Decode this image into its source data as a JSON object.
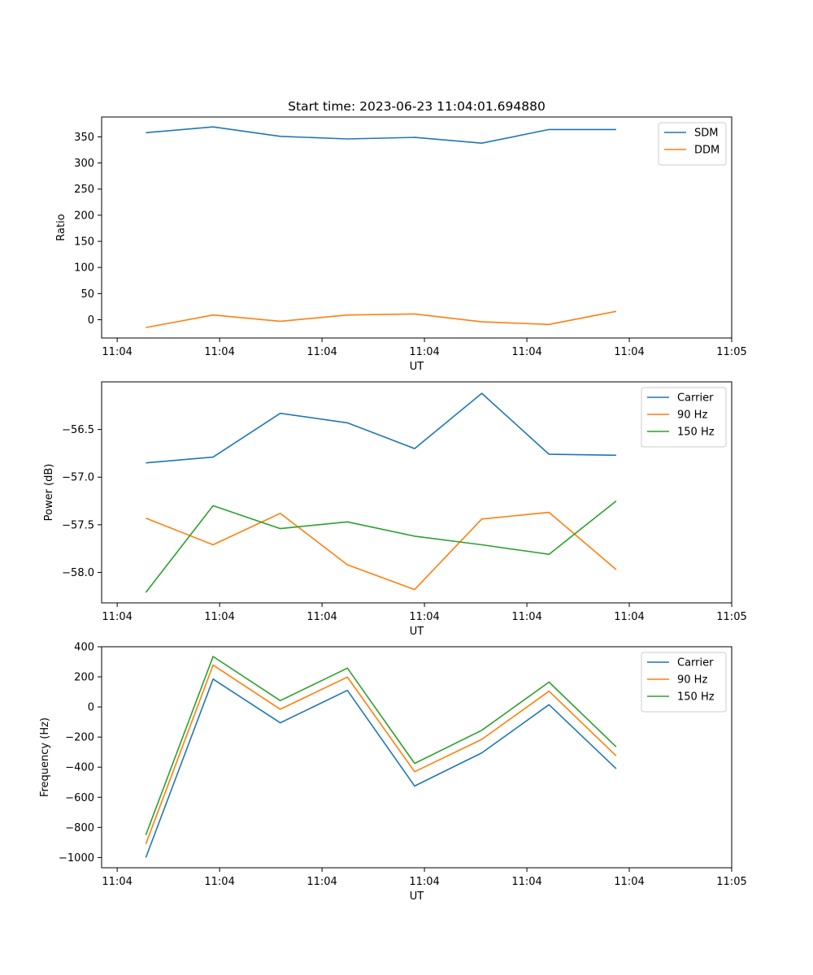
{
  "chart_data": [
    {
      "type": "line",
      "title": "Start time: 2023-06-23 11:04:01.694880",
      "xlabel": "UT",
      "ylabel": "Ratio",
      "x": [
        0.35,
        1.17,
        1.99,
        2.81,
        3.63,
        4.45,
        5.27,
        6.09
      ],
      "xlim": [
        -0.19,
        7.5
      ],
      "x_ticks": [
        0,
        1.25,
        2.5,
        3.75,
        5,
        6.25,
        7.5
      ],
      "x_tick_labels": [
        "11:04",
        "11:04",
        "11:04",
        "11:04",
        "11:04",
        "11:04",
        "11:05"
      ],
      "ylim": [
        -35,
        388
      ],
      "y_ticks": [
        0,
        50,
        100,
        150,
        200,
        250,
        300,
        350
      ],
      "y_tick_labels": [
        "0",
        "50",
        "100",
        "150",
        "200",
        "250",
        "300",
        "350"
      ],
      "legend": "top-right",
      "grid": false,
      "series": [
        {
          "name": "SDM",
          "color": "#1f77b4",
          "values": [
            358,
            369,
            351,
            346,
            349,
            338,
            364,
            364
          ]
        },
        {
          "name": "DDM",
          "color": "#ff7f0e",
          "values": [
            -15,
            9,
            -3,
            9,
            11,
            -4,
            -9,
            16
          ]
        }
      ]
    },
    {
      "type": "line",
      "title": "",
      "xlabel": "UT",
      "ylabel": "Power (dB)",
      "x": [
        0.35,
        1.17,
        1.99,
        2.81,
        3.63,
        4.45,
        5.27,
        6.09
      ],
      "xlim": [
        -0.19,
        7.5
      ],
      "x_ticks": [
        0,
        1.25,
        2.5,
        3.75,
        5,
        6.25,
        7.5
      ],
      "x_tick_labels": [
        "11:04",
        "11:04",
        "11:04",
        "11:04",
        "11:04",
        "11:04",
        "11:05"
      ],
      "ylim": [
        -58.32,
        -56.0
      ],
      "y_ticks": [
        -58.0,
        -57.5,
        -57.0,
        -56.5
      ],
      "y_tick_labels": [
        "−58.0",
        "−57.5",
        "−57.0",
        "−56.5"
      ],
      "legend": "top-right",
      "grid": false,
      "series": [
        {
          "name": "Carrier",
          "color": "#1f77b4",
          "values": [
            -56.85,
            -56.79,
            -56.33,
            -56.43,
            -56.7,
            -56.12,
            -56.76,
            -56.77
          ]
        },
        {
          "name": "90 Hz",
          "color": "#ff7f0e",
          "values": [
            -57.43,
            -57.71,
            -57.38,
            -57.92,
            -58.18,
            -57.44,
            -57.37,
            -57.97
          ]
        },
        {
          "name": "150 Hz",
          "color": "#2ca02c",
          "values": [
            -58.21,
            -57.3,
            -57.54,
            -57.47,
            -57.62,
            -57.71,
            -57.81,
            -57.25
          ]
        }
      ]
    },
    {
      "type": "line",
      "title": "",
      "xlabel": "UT",
      "ylabel": "Frequency (Hz)",
      "x": [
        0.35,
        1.17,
        1.99,
        2.81,
        3.63,
        4.45,
        5.27,
        6.09
      ],
      "xlim": [
        -0.19,
        7.5
      ],
      "x_ticks": [
        0,
        1.25,
        2.5,
        3.75,
        5,
        6.25,
        7.5
      ],
      "x_tick_labels": [
        "11:04",
        "11:04",
        "11:04",
        "11:04",
        "11:04",
        "11:04",
        "11:05"
      ],
      "ylim": [
        -1068,
        400
      ],
      "y_ticks": [
        -1000,
        -800,
        -600,
        -400,
        -200,
        0,
        200,
        400
      ],
      "y_tick_labels": [
        "−1000",
        "−800",
        "−600",
        "−400",
        "−200",
        "0",
        "200",
        "400"
      ],
      "legend": "top-right",
      "grid": false,
      "series": [
        {
          "name": "Carrier",
          "color": "#1f77b4",
          "values": [
            -1000,
            185,
            -105,
            110,
            -525,
            -305,
            15,
            -410
          ]
        },
        {
          "name": "90 Hz",
          "color": "#ff7f0e",
          "values": [
            -910,
            278,
            -15,
            198,
            -430,
            -215,
            105,
            -325
          ]
        },
        {
          "name": "150 Hz",
          "color": "#2ca02c",
          "values": [
            -850,
            335,
            42,
            258,
            -375,
            -155,
            165,
            -265
          ]
        }
      ]
    }
  ]
}
